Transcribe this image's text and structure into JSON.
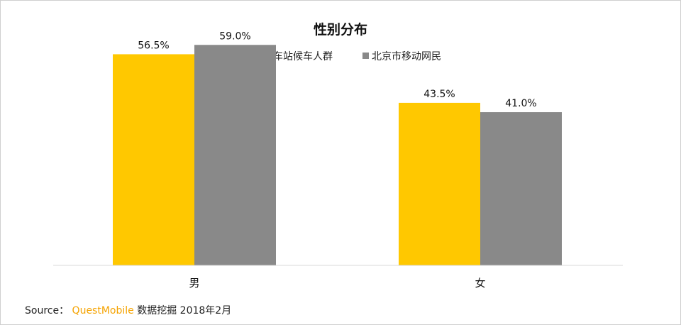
{
  "chart_data": {
    "type": "bar",
    "title": "性别分布",
    "categories": [
      "男",
      "女"
    ],
    "series": [
      {
        "name": "北京火车站候车人群",
        "values": [
          56.5,
          43.5
        ],
        "color": "#FFC800"
      },
      {
        "name": "北京市移动网民",
        "values": [
          59.0,
          41.0
        ],
        "color": "#898989"
      }
    ],
    "value_format": "percent_1dp",
    "ylim": [
      0,
      60
    ],
    "grid": false,
    "legend_position": "top-center"
  },
  "source": {
    "prefix": "Source：",
    "brand": "QuestMobile",
    "suffix": "数据挖掘 2018年2月"
  }
}
